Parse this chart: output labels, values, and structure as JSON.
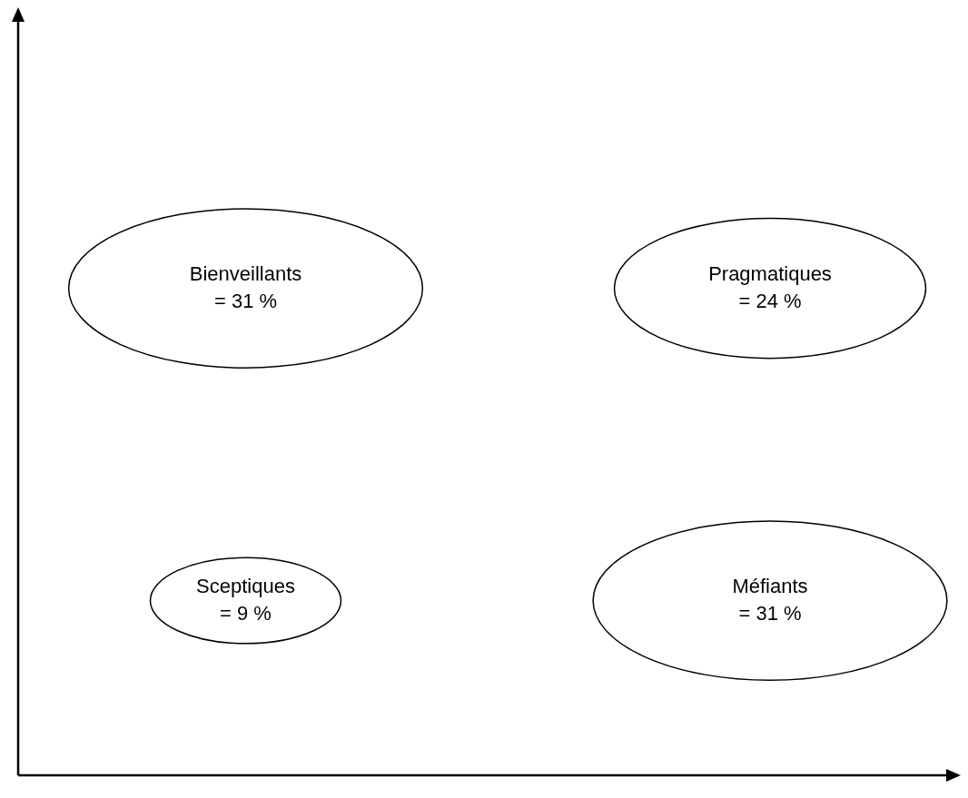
{
  "chart_data": {
    "type": "other",
    "categories": [
      "Bienveillants",
      "Pragmatiques",
      "Sceptiques",
      "Méfiants"
    ],
    "values": [
      31,
      24,
      9,
      31
    ],
    "value_labels": [
      "= 31 %",
      "= 24 %",
      "= 9 %",
      "= 31 %"
    ]
  }
}
